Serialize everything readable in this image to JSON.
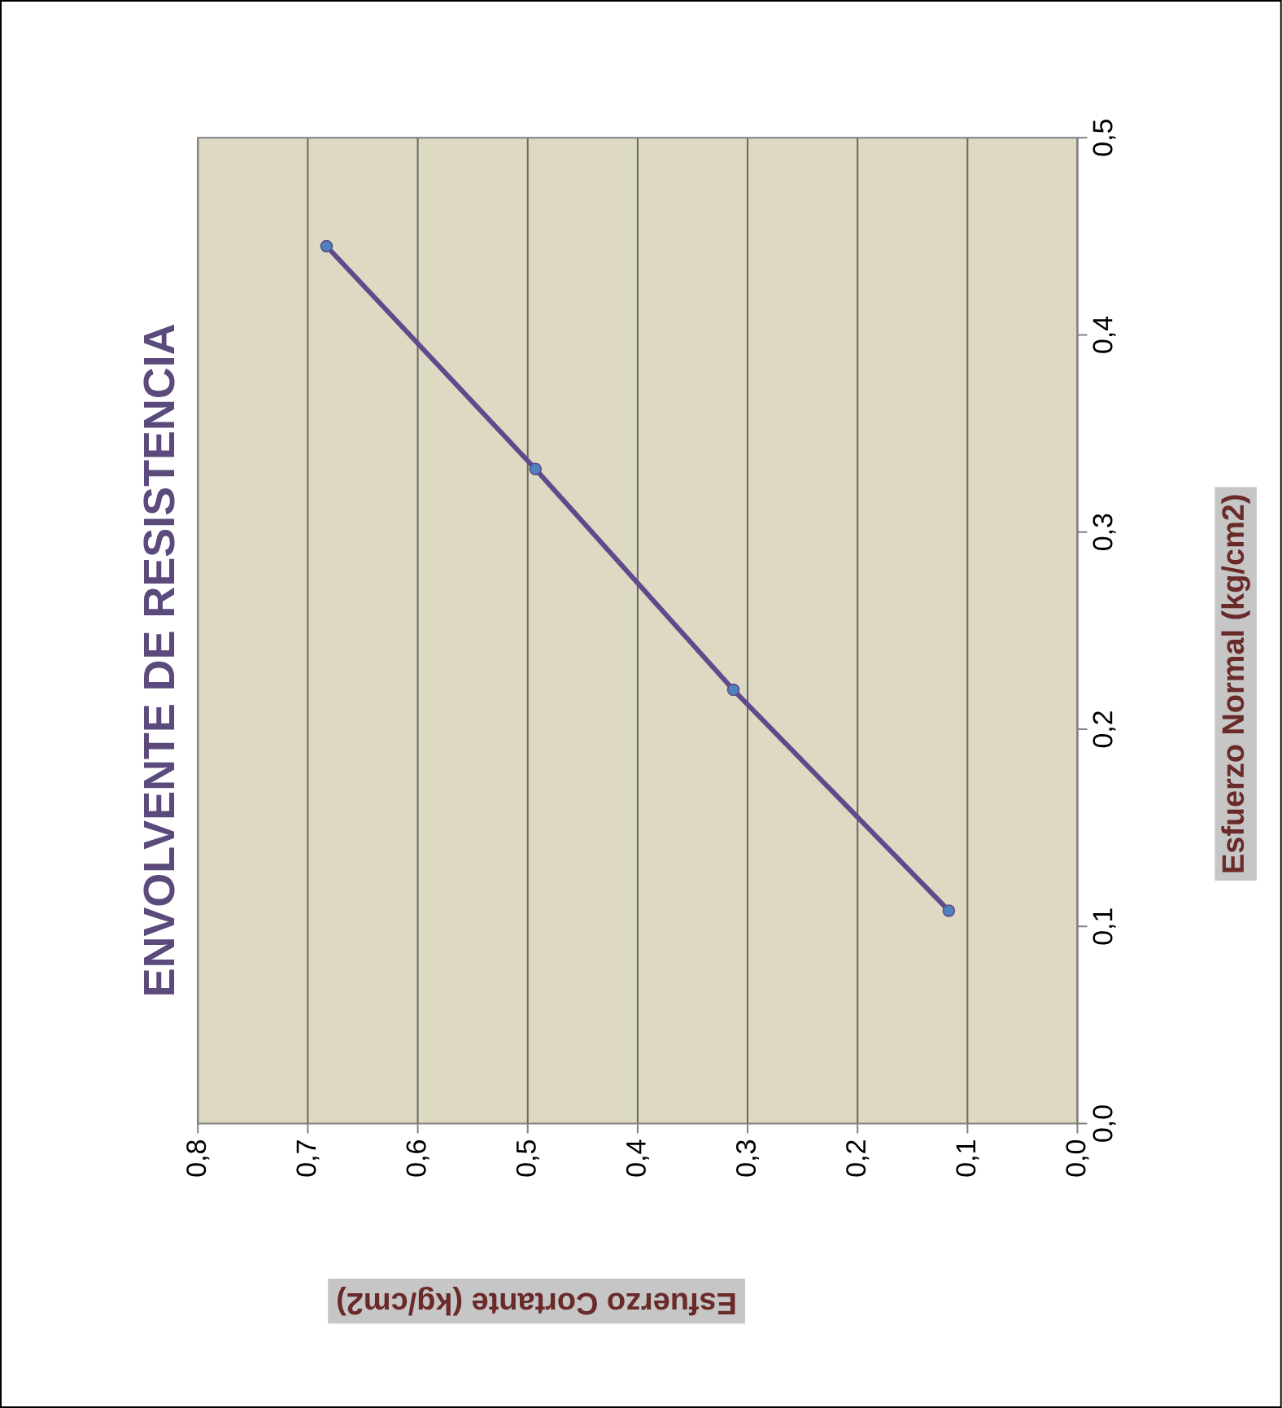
{
  "chart_data": {
    "type": "line",
    "title": "ENVOLVENTE DE RESISTENCIA",
    "xlabel": "Esfuerzo  Cortante (kg/cm2)",
    "ylabel": "Esfuerzo Normal (kg/cm2)",
    "x": [
      0.117,
      0.313,
      0.493,
      0.683
    ],
    "series": [
      {
        "color": "#5f4b8b",
        "values": [
          0.108,
          0.22,
          0.332,
          0.445
        ]
      }
    ],
    "xlim": [
      0.8,
      0
    ],
    "xticks": [
      {
        "value": 0,
        "label": "0,0"
      },
      {
        "value": 0.1,
        "label": "0,1"
      },
      {
        "value": 0.2,
        "label": "0,2"
      },
      {
        "value": 0.3,
        "label": "0,3"
      },
      {
        "value": 0.4,
        "label": "0,4"
      },
      {
        "value": 0.5,
        "label": "0,5"
      },
      {
        "value": 0.6,
        "label": "0,6"
      },
      {
        "value": 0.7,
        "label": "0,7"
      },
      {
        "value": 0.8,
        "label": "0,8"
      }
    ],
    "ylim": [
      0,
      0.5
    ],
    "yticks": [
      {
        "value": 0,
        "label": "0,0"
      },
      {
        "value": 0.1,
        "label": "0,1"
      },
      {
        "value": 0.2,
        "label": "0,2"
      },
      {
        "value": 0.3,
        "label": "0,3"
      },
      {
        "value": 0.4,
        "label": "0,4"
      },
      {
        "value": 0.5,
        "label": "0,5"
      }
    ],
    "grid": "x",
    "marker": "circle"
  }
}
